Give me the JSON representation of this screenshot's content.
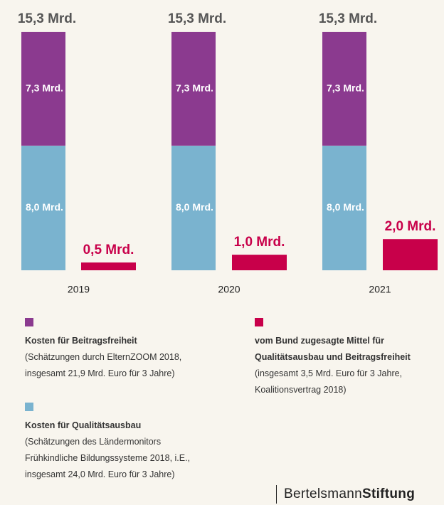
{
  "chart_data": {
    "type": "stacked-bar-with-side-bar",
    "categories": [
      "2019",
      "2020",
      "2021"
    ],
    "series": [
      {
        "name": "Kosten für Qualitätsausbau",
        "color": "#7ab3cf",
        "stack": true,
        "values": [
          8.0,
          8.0,
          8.0
        ],
        "value_labels": [
          "8,0 Mrd.",
          "8,0 Mrd.",
          "8,0 Mrd."
        ],
        "note": [
          "(Schätzungen des Ländermonitors",
          "Frühkindliche Bildungssysteme 2018, i.E.,",
          "insgesamt 24,0 Mrd. Euro für 3 Jahre)"
        ]
      },
      {
        "name": "Kosten für Beitragsfreiheit",
        "color": "#8b3a8f",
        "stack": true,
        "values": [
          7.3,
          7.3,
          7.3
        ],
        "value_labels": [
          "7,3 Mrd.",
          "7,3 Mrd.",
          "7,3 Mrd."
        ],
        "note": [
          "(Schätzungen durch ElternZOOM 2018,",
          "insgesamt 21,9 Mrd. Euro für 3 Jahre)"
        ]
      },
      {
        "name": "vom Bund zugesagte Mittel für Qualitätsausbau und Beitragsfreiheit",
        "color": "#c8004a",
        "stack": false,
        "values": [
          0.5,
          1.0,
          2.0
        ],
        "value_labels": [
          "0,5 Mrd.",
          "1,0 Mrd.",
          "2,0 Mrd."
        ],
        "note": [
          "(insgesamt 3,5 Mrd. Euro für 3 Jahre,",
          "Koalitionsvertrag 2018)"
        ]
      }
    ],
    "totals": {
      "values": [
        15.3,
        15.3,
        15.3
      ],
      "value_labels": [
        "15,3 Mrd.",
        "15,3 Mrd.",
        "15,3 Mrd."
      ]
    },
    "brand": [
      "Bertelsmann",
      "Stiftung"
    ]
  }
}
